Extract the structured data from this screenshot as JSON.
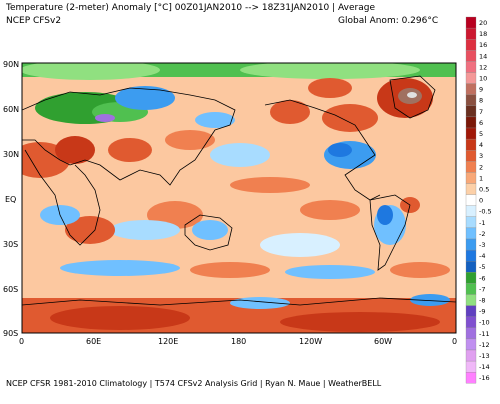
{
  "header": {
    "title": "Temperature (2-meter) Anomaly  [°C] 00Z01JAN2010 --> 18Z31JAN2010 | Average",
    "model": "NCEP CFSv2",
    "global_anom": "Global Anom: 0.296°C"
  },
  "footer": {
    "credits": "NCEP CFSR 1981-2010 Climatology | T574 CFSv2 Analysis Grid | Ryan N. Maue | WeatherBELL"
  },
  "map": {
    "lat_labels": [
      "90N",
      "60N",
      "30N",
      "EQ",
      "30S",
      "60S",
      "90S"
    ],
    "lon_labels": [
      "0",
      "60E",
      "120E",
      "180",
      "120W",
      "60W",
      "0"
    ]
  },
  "colorbar": {
    "labels": [
      "20",
      "18",
      "16",
      "14",
      "12",
      "10",
      "9",
      "8",
      "7",
      "6",
      "5",
      "4",
      "3",
      "2",
      "1",
      "0.5",
      "0",
      "-0.5",
      "-1",
      "-2",
      "-3",
      "-4",
      "-5",
      "-6",
      "-7",
      "-8",
      "-9",
      "-10",
      "-11",
      "-12",
      "-13",
      "-14",
      "-16"
    ],
    "colors": [
      "#b80020",
      "#cc1830",
      "#dd3040",
      "#e85060",
      "#f07080",
      "#f49898",
      "#c07060",
      "#8a5040",
      "#6a3020",
      "#7a1808",
      "#a01808",
      "#c83818",
      "#e05a30",
      "#f08050",
      "#f8a878",
      "#fcd0a8",
      "#ffffff",
      "#d8f0ff",
      "#a8dcff",
      "#70c0ff",
      "#3c9cf0",
      "#1e78e0",
      "#1460c0",
      "#30a030",
      "#50c050",
      "#90e080",
      "#6040c0",
      "#8050d0",
      "#a070e0",
      "#c090f0",
      "#e0a0f0",
      "#f0b8f8",
      "#ff80ff"
    ]
  }
}
